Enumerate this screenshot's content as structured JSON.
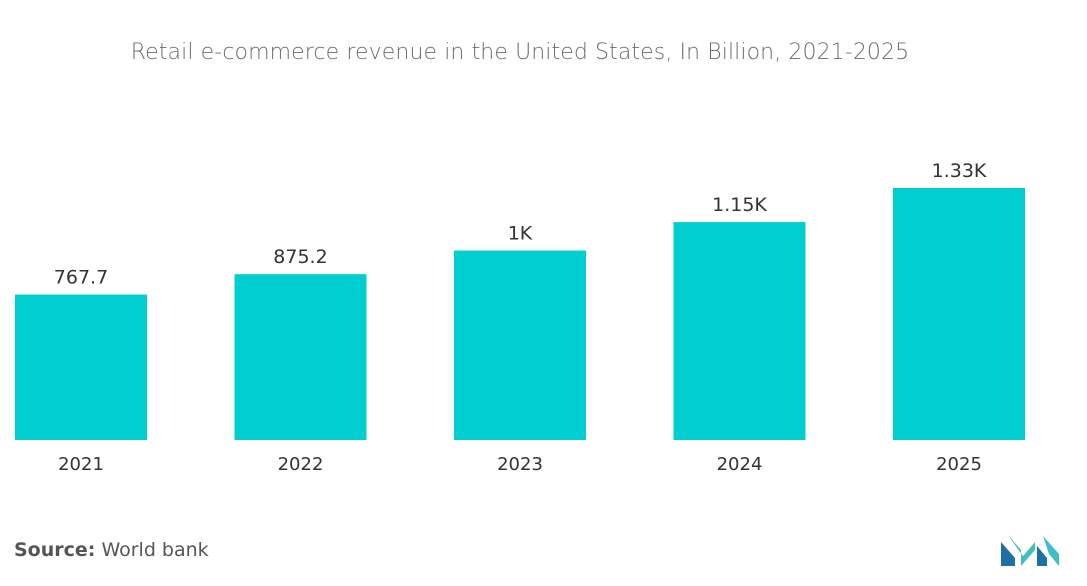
{
  "chart_data": {
    "type": "bar",
    "title": "Retail e-commerce revenue in the United States, In Billion, 2021-2025",
    "categories": [
      "2021",
      "2022",
      "2023",
      "2024",
      "2025"
    ],
    "values": [
      767.7,
      875.2,
      1000,
      1150,
      1330
    ],
    "data_labels": [
      "767.7",
      "875.2",
      "1K",
      "1.15K",
      "1.33K"
    ],
    "xlabel": "",
    "ylabel": "",
    "ylim": [
      0,
      1330
    ],
    "grid": false,
    "legend": "none",
    "bar_color": "#00CED1"
  },
  "source": {
    "label": "Source:",
    "value": "World bank"
  },
  "brand": {
    "logo_icon": "mordor-intelligence-logo-icon",
    "colors": [
      "#1d6fa5",
      "#3fbfc4"
    ]
  }
}
